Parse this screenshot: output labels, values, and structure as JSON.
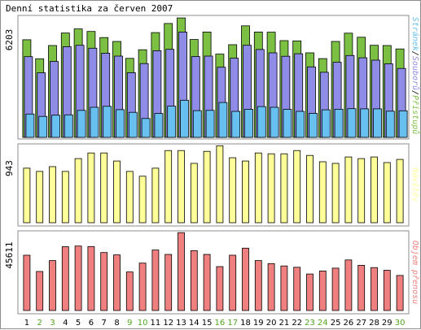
{
  "chart_data": [
    {
      "type": "bar",
      "title": "Denní statistika za červen 2007",
      "categories": [
        "1",
        "2",
        "3",
        "4",
        "5",
        "6",
        "7",
        "8",
        "9",
        "10",
        "11",
        "12",
        "13",
        "14",
        "15",
        "16",
        "17",
        "18",
        "19",
        "20",
        "21",
        "22",
        "23",
        "24",
        "25",
        "26",
        "27",
        "28",
        "29",
        "30"
      ],
      "weekend_days": [
        "2",
        "3",
        "9",
        "10",
        "16",
        "17",
        "23",
        "24",
        "30"
      ],
      "max_label": "6203",
      "ylim": [
        0,
        6203
      ],
      "legend_parts": [
        "Stránek",
        "/",
        "Souborů",
        "/",
        "Přístupů"
      ],
      "series": [
        {
          "name": "Přístupů",
          "color": "#7cc043",
          "values": [
            5070,
            4080,
            4770,
            5420,
            5630,
            5500,
            5180,
            4980,
            4100,
            4550,
            5440,
            5910,
            6200,
            5080,
            5470,
            4320,
            4810,
            5790,
            5470,
            5460,
            5020,
            5010,
            4390,
            4090,
            4980,
            5410,
            5200,
            4780,
            4770,
            4590
          ]
        },
        {
          "name": "Souborů",
          "color": "#8f8ce8",
          "values": [
            4190,
            3350,
            3940,
            4710,
            4780,
            4630,
            4370,
            4220,
            3360,
            3830,
            4500,
            4570,
            5470,
            4200,
            4220,
            3640,
            4110,
            4780,
            4560,
            4390,
            4210,
            4340,
            3660,
            3380,
            3900,
            4250,
            4130,
            4010,
            3820,
            3580
          ]
        },
        {
          "name": "Stránek",
          "color": "#67c0f0",
          "values": [
            1210,
            1090,
            1150,
            1170,
            1400,
            1560,
            1610,
            1440,
            1300,
            980,
            1240,
            1620,
            1930,
            1390,
            1400,
            1810,
            1350,
            1460,
            1600,
            1560,
            1450,
            1350,
            1250,
            1430,
            1460,
            1490,
            1480,
            1480,
            1360,
            1380
          ]
        }
      ]
    },
    {
      "type": "bar",
      "max_label": "943",
      "ylim": [
        0,
        943
      ],
      "series": [
        {
          "name": "Návštěv",
          "color": "#ffff99",
          "values": [
            680,
            640,
            700,
            640,
            800,
            870,
            870,
            770,
            640,
            580,
            680,
            900,
            900,
            740,
            890,
            960,
            810,
            770,
            870,
            860,
            860,
            900,
            840,
            760,
            740,
            820,
            800,
            820,
            750,
            790
          ]
        }
      ]
    },
    {
      "type": "bar",
      "max_label": "45611",
      "ylim": [
        0,
        45611
      ],
      "series": [
        {
          "name": "Objem přenosu",
          "color": "#f08080",
          "values": [
            33000,
            23300,
            29800,
            38100,
            38500,
            38200,
            34600,
            33200,
            23000,
            28300,
            36100,
            33500,
            46500,
            35700,
            33500,
            26200,
            33000,
            37200,
            29800,
            28000,
            26600,
            25800,
            21800,
            23600,
            25300,
            30200,
            27000,
            25600,
            24000,
            20900
          ]
        }
      ]
    }
  ]
}
